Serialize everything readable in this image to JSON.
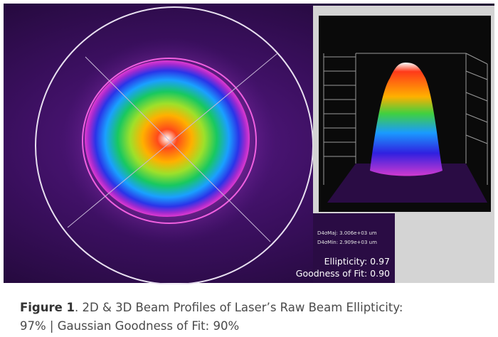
{
  "figure": {
    "overlay": {
      "d4sig_major": "D4σMaj: 3.006e+03 um",
      "d4sig_minor": "D4σMin: 2.909e+03 um",
      "ellipticity": "Ellipticity: 0.97",
      "goodness_of_fit": "Goodness of Fit: 0.90"
    },
    "caption": {
      "label": "Figure 1",
      "text": ". 2D & 3D Beam Profiles of Laser’s Raw Beam Ellipticity: 97% | Gaussian Goodness of Fit: 90%"
    }
  }
}
